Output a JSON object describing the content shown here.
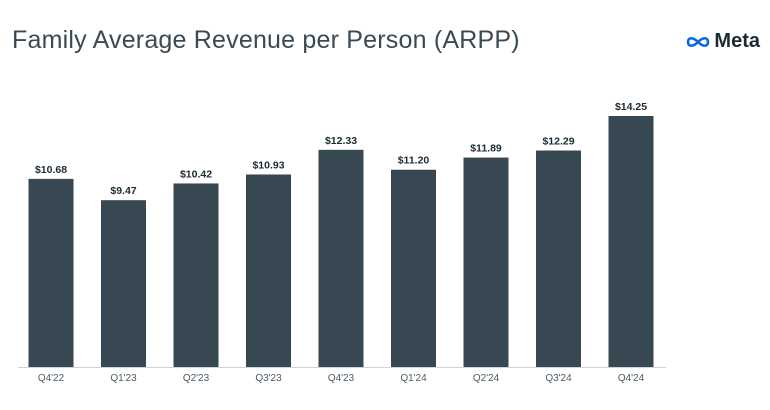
{
  "header": {
    "title": "Family Average Revenue per Person (ARPP)",
    "brand": "Meta",
    "brand_icon": "meta-infinity-icon"
  },
  "colors": {
    "bar": "#384852",
    "brand": "#0668e1",
    "axis": "#cfd4d8"
  },
  "chart_data": {
    "type": "bar",
    "title": "Family Average Revenue per Person (ARPP)",
    "xlabel": "",
    "ylabel": "",
    "ylim": [
      0,
      14.25
    ],
    "categories": [
      "Q4'22",
      "Q1'23",
      "Q2'23",
      "Q3'23",
      "Q4'23",
      "Q1'24",
      "Q2'24",
      "Q3'24",
      "Q4'24"
    ],
    "values": [
      10.68,
      9.47,
      10.42,
      10.93,
      12.33,
      11.2,
      11.89,
      12.29,
      14.25
    ],
    "data_labels": [
      "$10.68",
      "$9.47",
      "$10.42",
      "$10.93",
      "$12.33",
      "$11.20",
      "$11.89",
      "$12.29",
      "$14.25"
    ],
    "grid": false,
    "legend": "none"
  }
}
